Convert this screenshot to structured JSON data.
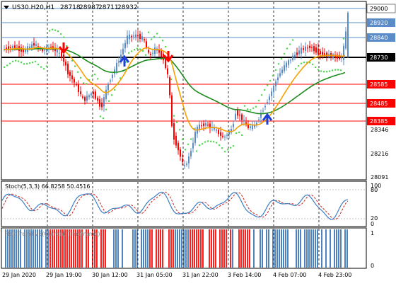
{
  "header": {
    "symbol": "US30.H20,H1",
    "ohlc": [
      "28718",
      "28987",
      "28711",
      "28932"
    ]
  },
  "price_axis": {
    "labels": [
      "28346",
      "28216",
      "28091"
    ],
    "level_badges": [
      {
        "text": "29000",
        "bg": "#ffffff",
        "fg": "#000000"
      },
      {
        "text": "28920",
        "bg": "#5b8cc8",
        "fg": "#ffffff"
      },
      {
        "text": "28840",
        "bg": "#5b8cc8",
        "fg": "#ffffff"
      },
      {
        "text": "28730",
        "bg": "#000000",
        "fg": "#ffffff"
      },
      {
        "text": "28585",
        "bg": "#ff0000",
        "fg": "#ffffff"
      },
      {
        "text": "28485",
        "bg": "#ff0000",
        "fg": "#ffffff"
      },
      {
        "text": "28385",
        "bg": "#ff0000",
        "fg": "#ffffff"
      }
    ]
  },
  "stoch": {
    "label": "Stoch(5,3,3) 66.8258 50.4516",
    "levels": [
      "100",
      "80",
      "20",
      "0"
    ]
  },
  "flat_trend": {
    "label": "Flat Trend V3(Current Timeframe)",
    "levels": [
      "1",
      "0"
    ]
  },
  "time_axis": [
    "29 Jan 2020",
    "29 Jan 19:00",
    "30 Jan 12:00",
    "31 Jan 05:00",
    "31 Jan 22:00",
    "3 Feb 14:00",
    "4 Feb 07:00",
    "4 Feb 23:00"
  ],
  "colors": {
    "up_candle": "#5b8cc8",
    "down_candle": "#ff0000",
    "ma_fast": "#f5a000",
    "ma_slow": "#1e8c1e",
    "sar": "#44dd44",
    "stoch_main": "#3a7fc8",
    "stoch_signal": "#cc2222",
    "trend_up": "#4f83bf",
    "trend_down": "#ff2020"
  },
  "markers": {
    "down_arrow_color": "#ff0000",
    "up_arrow_color": "#1e40d8"
  }
}
